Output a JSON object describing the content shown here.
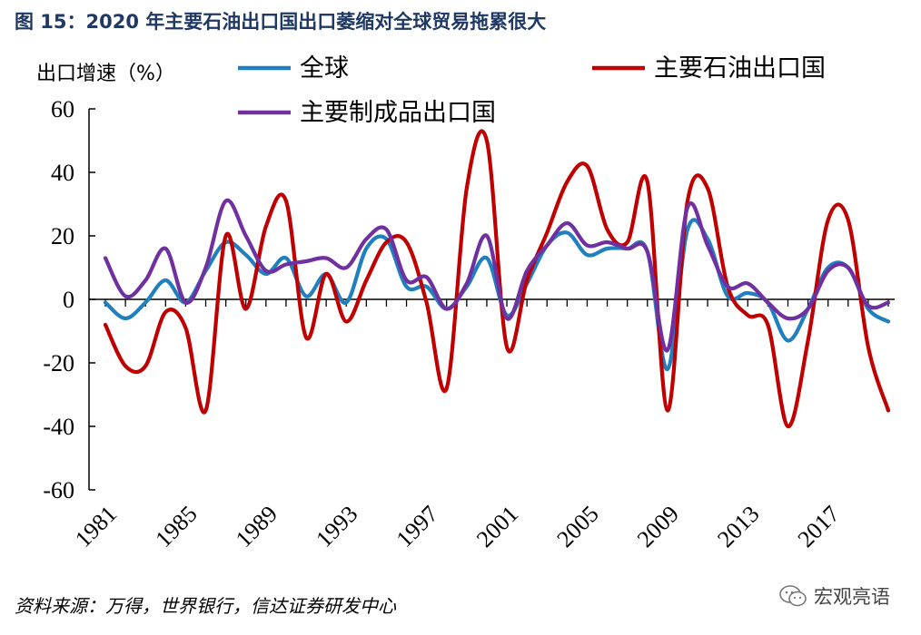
{
  "title": "图 15：2020 年主要石油出口国出口萎缩对全球贸易拖累很大",
  "source": "资料来源：万得，世界银行，信达证券研发中心",
  "watermark": "宏观亮语",
  "colors": {
    "world": "#1f7fbf",
    "oil": "#c00000",
    "manufacturing": "#7030a0",
    "title": "#1f3864"
  },
  "chart_data": {
    "type": "line",
    "ylabel": "出口增速（%）",
    "ylim": [
      -60,
      60
    ],
    "yticks": [
      60,
      40,
      20,
      0,
      -20,
      -40,
      -60
    ],
    "x": [
      1981,
      1982,
      1983,
      1984,
      1985,
      1986,
      1987,
      1988,
      1989,
      1990,
      1991,
      1992,
      1993,
      1994,
      1995,
      1996,
      1997,
      1998,
      1999,
      2000,
      2001,
      2002,
      2003,
      2004,
      2005,
      2006,
      2007,
      2008,
      2009,
      2010,
      2011,
      2012,
      2013,
      2014,
      2015,
      2016,
      2017,
      2018,
      2019,
      2020
    ],
    "xtick_labels": [
      "1981",
      "1985",
      "1989",
      "1993",
      "1997",
      "2001",
      "2005",
      "2009",
      "2013",
      "2017"
    ],
    "legend_placement": "top",
    "series": [
      {
        "name": "全球",
        "color": "#1f7fbf",
        "values": [
          -1,
          -6,
          -1,
          6,
          -1,
          9,
          18,
          14,
          8,
          13,
          1,
          8,
          -1,
          16,
          19,
          4,
          4,
          -3,
          4,
          13,
          -5,
          5,
          17,
          21,
          14,
          16,
          16,
          15,
          -22,
          22,
          19,
          1,
          2,
          -1,
          -13,
          -3,
          10,
          10,
          -3,
          -7
        ]
      },
      {
        "name": "主要石油出口国",
        "color": "#c00000",
        "values": [
          -8,
          -21,
          -21,
          -4,
          -9,
          -35,
          20,
          -3,
          23,
          31,
          -12,
          8,
          -7,
          6,
          18,
          18,
          -1,
          -28,
          35,
          50,
          -15,
          6,
          21,
          37,
          42,
          22,
          18,
          37,
          -35,
          31,
          35,
          4,
          -5,
          -8,
          -40,
          -13,
          25,
          25,
          -15,
          -35
        ]
      },
      {
        "name": "主要制成品出口国",
        "color": "#7030a0",
        "values": [
          13,
          1,
          6,
          16,
          -1,
          10,
          31,
          20,
          9,
          11,
          12,
          13,
          10,
          19,
          22,
          6,
          7,
          -3,
          5,
          20,
          -6,
          9,
          17,
          24,
          17,
          18,
          16,
          15,
          -16,
          29,
          17,
          4,
          5,
          -1,
          -6,
          -3,
          9,
          10,
          -2,
          -1
        ]
      }
    ]
  }
}
